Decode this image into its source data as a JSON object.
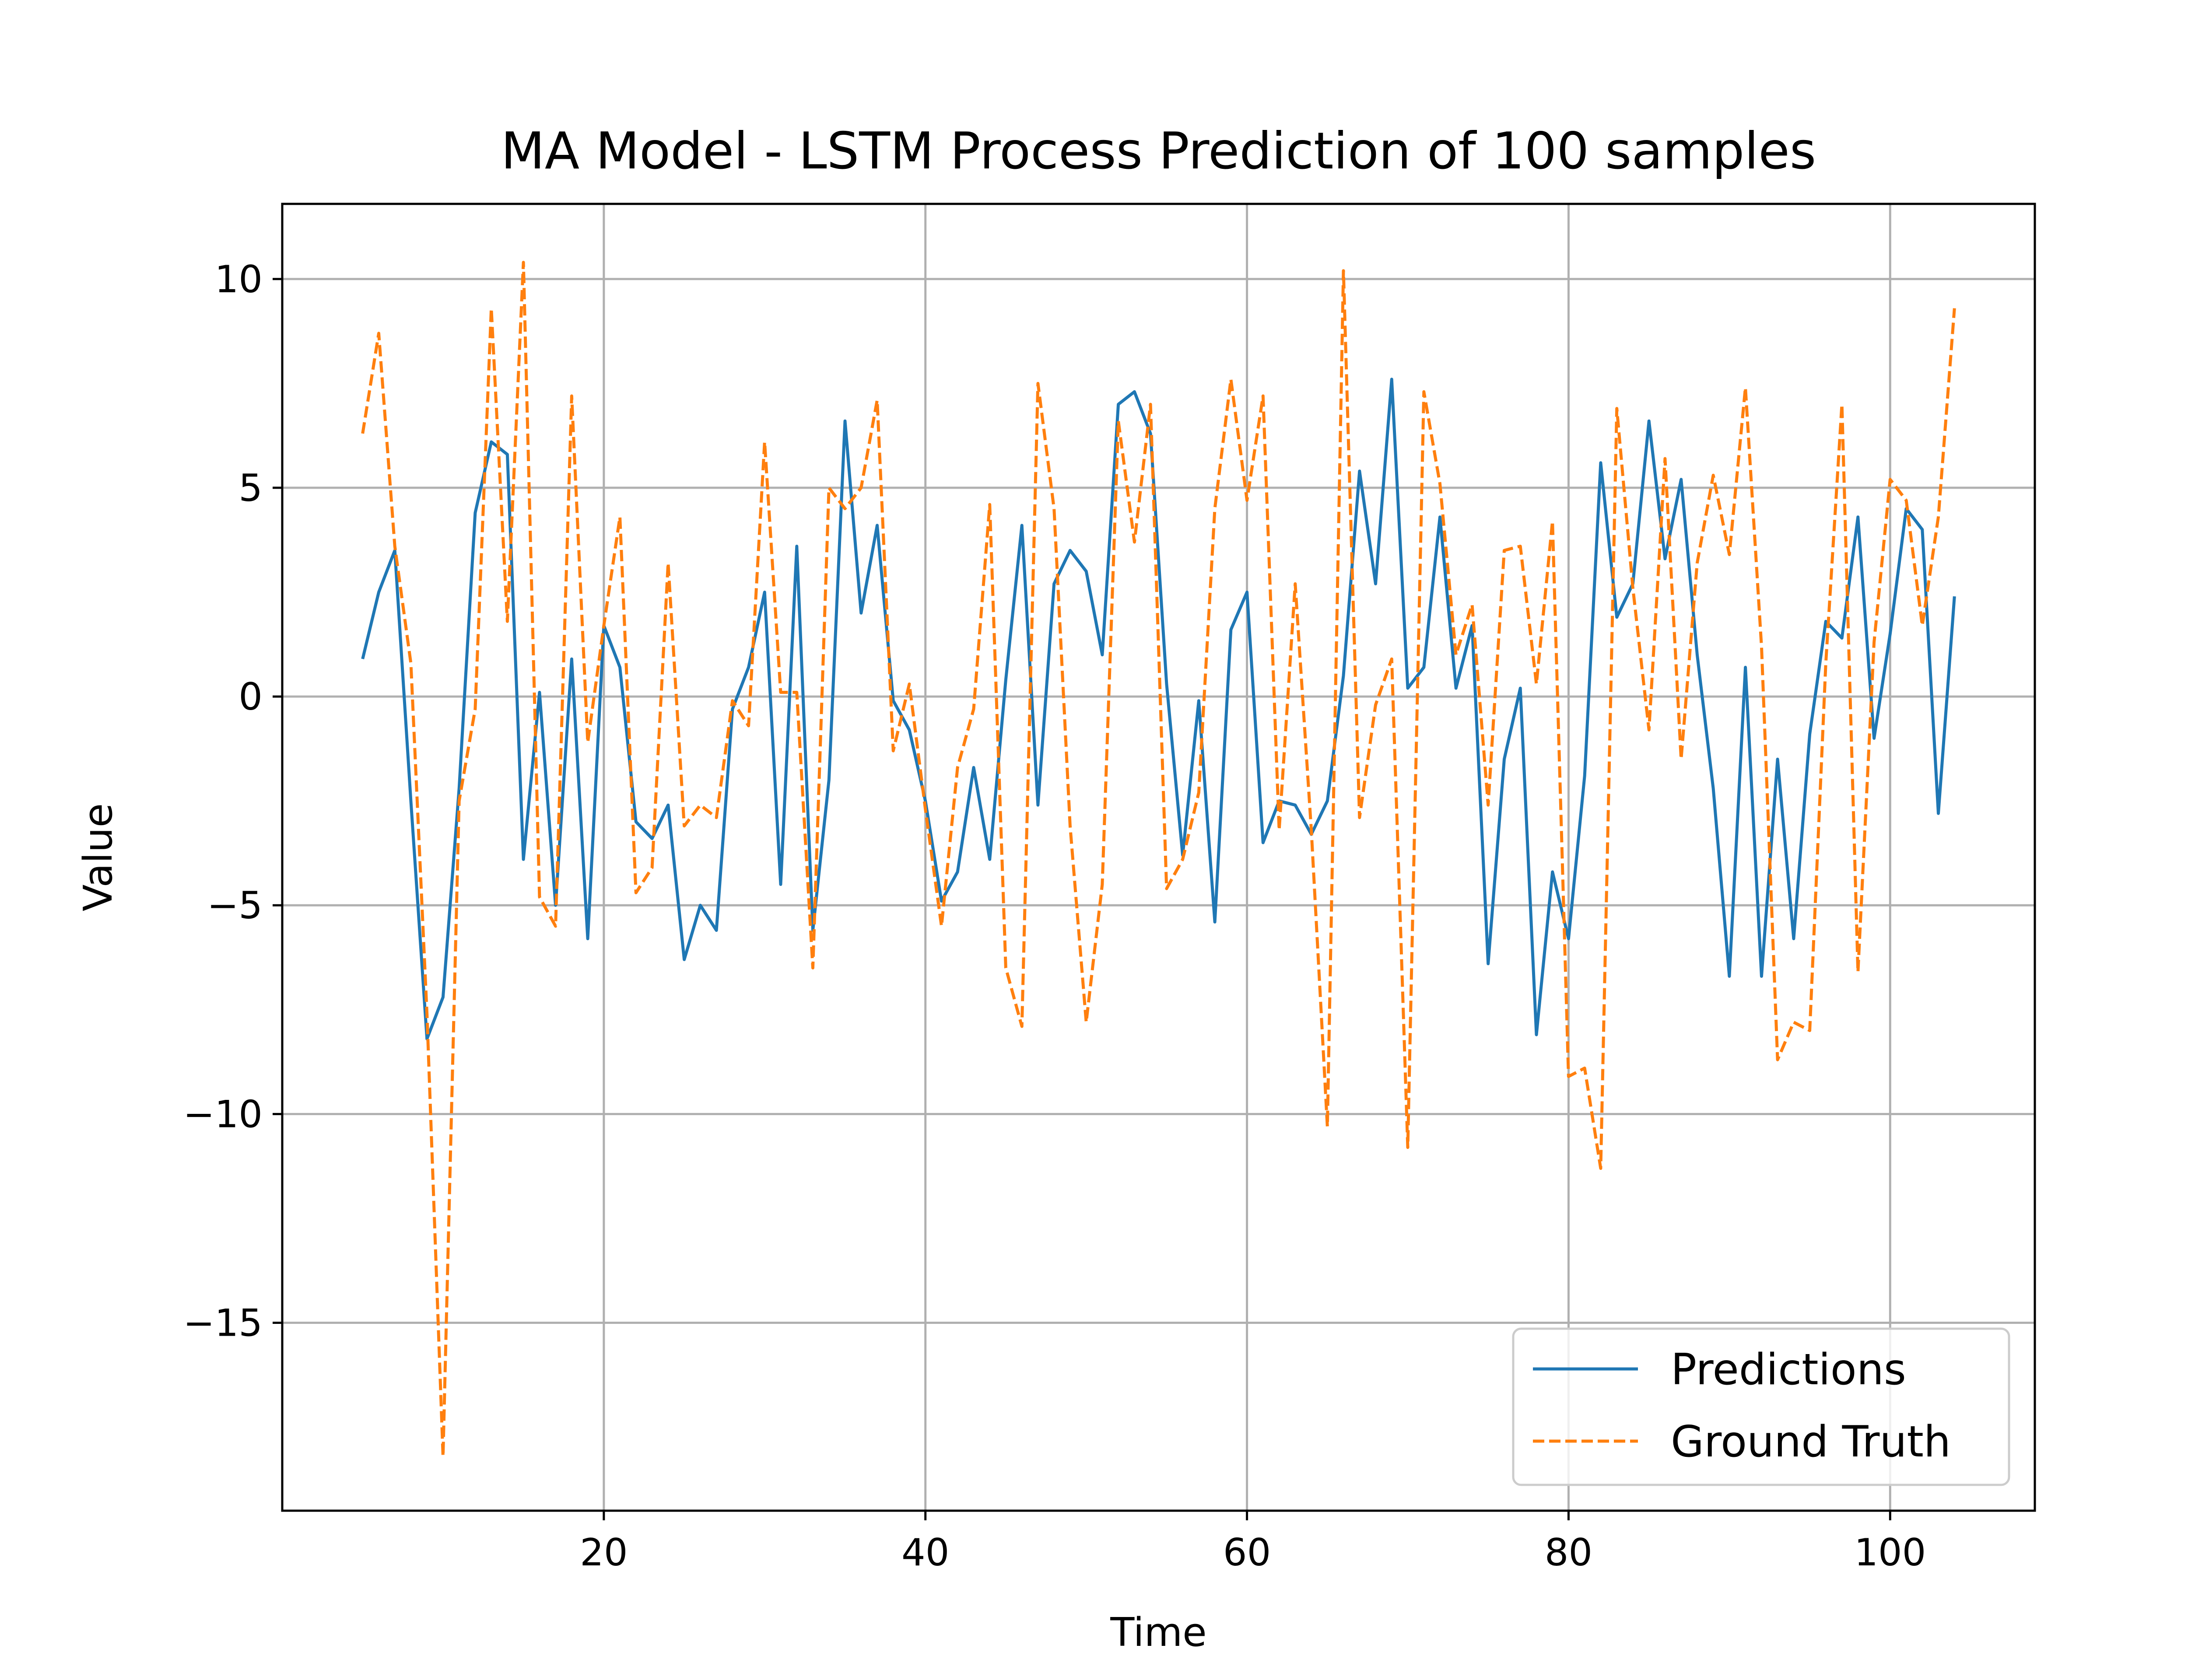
{
  "chart_data": {
    "type": "line",
    "title": "MA Model - LSTM Process Prediction of 100 samples",
    "xlabel": "Time",
    "ylabel": "Value",
    "xlim": [
      0,
      109
    ],
    "ylim": [
      -19.5,
      11.8
    ],
    "xticks": [
      20,
      40,
      60,
      80,
      100
    ],
    "yticks": [
      10,
      5,
      0,
      -5,
      -10,
      -15
    ],
    "ytick_labels": [
      "10",
      "5",
      "0",
      "−5",
      "−10",
      "−15"
    ],
    "grid": true,
    "legend_position": "lower-right",
    "x_start": 5,
    "series": [
      {
        "name": "Predictions",
        "color": "#1f77b4",
        "style": "solid",
        "values": [
          0.9,
          2.5,
          3.5,
          -2.5,
          -8.2,
          -7.2,
          -2.2,
          4.4,
          6.1,
          5.8,
          -3.9,
          0.1,
          -5.0,
          0.9,
          -5.8,
          1.7,
          0.7,
          -3.0,
          -3.4,
          -2.6,
          -6.3,
          -5.0,
          -5.6,
          -0.3,
          0.7,
          2.5,
          -4.5,
          3.6,
          -5.6,
          -2.0,
          6.6,
          2.0,
          4.1,
          -0.1,
          -0.8,
          -2.5,
          -4.9,
          -4.2,
          -1.7,
          -3.9,
          0.4,
          4.1,
          -2.6,
          2.7,
          3.5,
          3.0,
          1.0,
          7.0,
          7.3,
          6.3,
          0.3,
          -3.8,
          -0.1,
          -5.4,
          1.6,
          2.5,
          -3.5,
          -2.5,
          -2.6,
          -3.3,
          -2.5,
          0.5,
          5.4,
          2.7,
          7.6,
          0.2,
          0.7,
          4.3,
          0.2,
          1.7,
          -6.4,
          -1.5,
          0.2,
          -8.1,
          -4.2,
          -5.8,
          -1.9,
          5.6,
          1.9,
          2.7,
          6.6,
          3.3,
          5.2,
          1.0,
          -2.2,
          -6.7,
          0.7,
          -6.7,
          -1.5,
          -5.8,
          -0.9,
          1.8,
          1.4,
          4.3,
          -1.0,
          1.5,
          4.5,
          4.0,
          -2.8,
          2.4
        ]
      },
      {
        "name": "Ground Truth",
        "color": "#ff7f0e",
        "style": "dashed",
        "values": [
          6.3,
          8.7,
          3.6,
          0.8,
          -7.6,
          -18.2,
          -2.5,
          -0.3,
          9.3,
          1.8,
          10.4,
          -4.8,
          -5.5,
          7.2,
          -1.1,
          1.7,
          4.3,
          -4.7,
          -4.1,
          3.2,
          -3.1,
          -2.6,
          -2.9,
          -0.1,
          -0.7,
          6.1,
          0.1,
          0.1,
          -6.5,
          5.0,
          4.5,
          5.0,
          7.1,
          -1.3,
          0.3,
          -2.7,
          -5.5,
          -1.7,
          -0.3,
          4.6,
          -6.5,
          -7.9,
          7.5,
          4.5,
          -3.1,
          -7.8,
          -4.5,
          6.6,
          3.7,
          7.0,
          -4.6,
          -3.9,
          -2.3,
          4.5,
          7.6,
          4.7,
          7.2,
          -3.2,
          2.7,
          -3.2,
          -10.3,
          10.2,
          -2.9,
          -0.2,
          0.9,
          -10.8,
          7.3,
          5.1,
          1.0,
          2.2,
          -2.6,
          3.5,
          3.6,
          0.3,
          4.2,
          -9.1,
          -8.9,
          -11.3,
          6.9,
          2.6,
          -0.8,
          5.7,
          -1.5,
          3.2,
          5.3,
          3.4,
          7.4,
          1.2,
          -8.7,
          -7.8,
          -8.0,
          0.8,
          7.0,
          -6.6,
          1.3,
          5.2,
          4.7,
          1.7,
          4.3,
          9.3
        ]
      }
    ]
  }
}
